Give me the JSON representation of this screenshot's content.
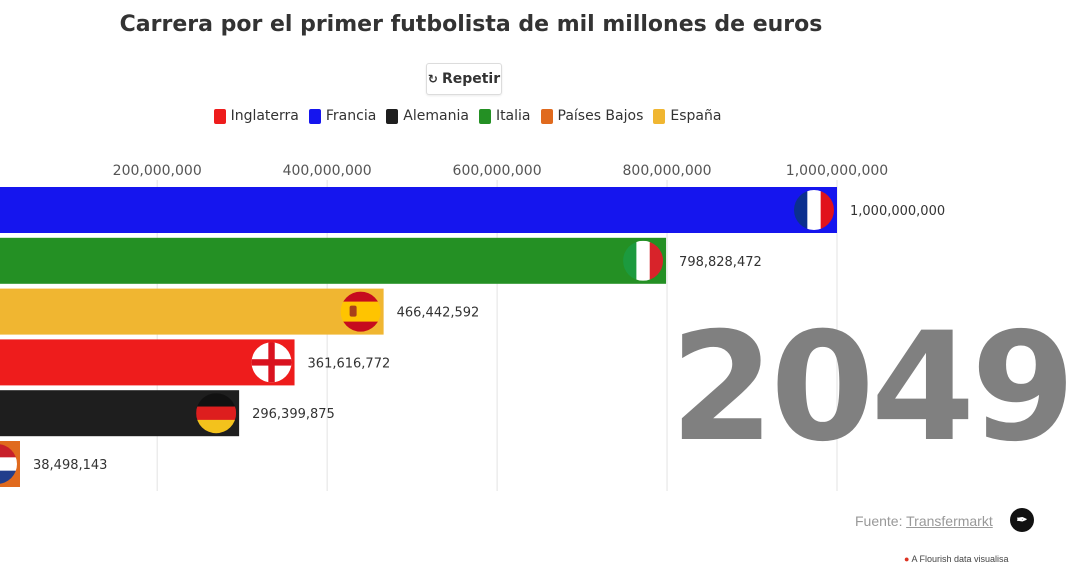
{
  "title": "Carrera por el primer futbolista de mil millones de euros",
  "replay_label": "Repetir",
  "replay_icon": "replay-icon",
  "legend": [
    {
      "label": "Inglaterra",
      "color": "#ee1c1c"
    },
    {
      "label": "Francia",
      "color": "#1515ee"
    },
    {
      "label": "Alemania",
      "color": "#1e1e1e"
    },
    {
      "label": "Italia",
      "color": "#249024"
    },
    {
      "label": "Países Bajos",
      "color": "#e06a1e"
    },
    {
      "label": "España",
      "color": "#f0b631"
    }
  ],
  "year": "2049",
  "source_prefix": "Fuente:",
  "source_link": "Transfermarkt",
  "footer": "A Flourish data visualisa",
  "chart_data": {
    "type": "bar",
    "orientation": "horizontal",
    "x_ticks": [
      200000000,
      400000000,
      600000000,
      800000000,
      1000000000
    ],
    "x_tick_labels": [
      "200,000,000",
      "400,000,000",
      "600,000,000",
      "800,000,000",
      "1,000,000,000"
    ],
    "xlim": [
      15000000,
      1000000000
    ],
    "grid": true,
    "legend_position": "top",
    "bars": [
      {
        "country": "Francia",
        "value": 1000000000,
        "label": "1,000,000,000",
        "color": "#1515ee",
        "flag": "france-flag-icon"
      },
      {
        "country": "Italia",
        "value": 798828472,
        "label": "798,828,472",
        "color": "#249024",
        "flag": "italy-flag-icon"
      },
      {
        "country": "España",
        "value": 466442592,
        "label": "466,442,592",
        "color": "#f0b631",
        "flag": "spain-flag-icon"
      },
      {
        "country": "Inglaterra",
        "value": 361616772,
        "label": "361,616,772",
        "color": "#ee1c1c",
        "flag": "england-flag-icon"
      },
      {
        "country": "Alemania",
        "value": 296399875,
        "label": "296,399,875",
        "color": "#1e1e1e",
        "flag": "germany-flag-icon"
      },
      {
        "country": "Países Bajos",
        "value": 38498143,
        "label": "38,498,143",
        "color": "#e06a1e",
        "flag": "netherlands-flag-icon"
      }
    ]
  }
}
